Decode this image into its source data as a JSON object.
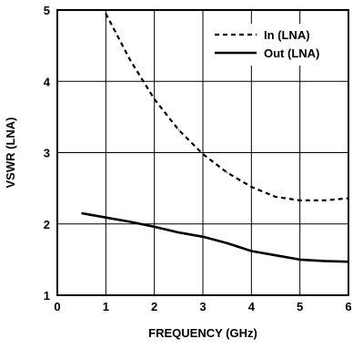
{
  "chart_data": {
    "type": "line",
    "xlabel": "FREQUENCY (GHz)",
    "ylabel": "VSWR (LNA)",
    "xlim": [
      0,
      6
    ],
    "ylim": [
      1,
      5
    ],
    "x_ticks": [
      "0",
      "1",
      "2",
      "3",
      "4",
      "5",
      "6"
    ],
    "y_ticks": [
      "1",
      "2",
      "3",
      "4",
      "5"
    ],
    "grid": true,
    "legend_position": "top-right",
    "series": [
      {
        "name": "In (LNA)",
        "style": "dashed",
        "color": "#000000",
        "x": [
          1.0,
          1.5,
          2.0,
          2.5,
          3.0,
          3.5,
          4.0,
          4.5,
          5.0,
          5.5,
          6.0
        ],
        "y": [
          4.95,
          4.3,
          3.75,
          3.32,
          2.98,
          2.72,
          2.52,
          2.38,
          2.33,
          2.33,
          2.36
        ]
      },
      {
        "name": "Out (LNA)",
        "style": "solid",
        "color": "#000000",
        "x": [
          0.5,
          1.0,
          1.5,
          2.0,
          2.5,
          3.0,
          3.5,
          4.0,
          4.5,
          5.0,
          5.5,
          6.0
        ],
        "y": [
          2.15,
          2.09,
          2.03,
          1.96,
          1.88,
          1.82,
          1.73,
          1.62,
          1.56,
          1.5,
          1.48,
          1.47
        ]
      }
    ]
  }
}
